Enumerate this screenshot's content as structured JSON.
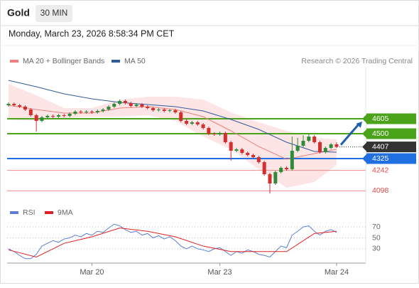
{
  "header": {
    "title": "Gold",
    "interval": "30 MIN",
    "datetime": "Monday, March 23, 2026 8:58:34 PM CET",
    "credit": "Research © 2026 Trading Central"
  },
  "chart_data": {
    "type": "candlestick",
    "categories": [
      null,
      null,
      null,
      null,
      null,
      null,
      null,
      null,
      null,
      null,
      null,
      null,
      null,
      null,
      null,
      "Mar 20",
      null,
      null,
      null,
      null,
      null,
      null,
      null,
      null,
      null,
      null,
      null,
      null,
      null,
      null,
      null,
      null,
      null,
      null,
      null,
      null,
      null,
      null,
      "Mar 23",
      null,
      null,
      null,
      null,
      null,
      null,
      null,
      null,
      null,
      null,
      null,
      null,
      null,
      null,
      null,
      null,
      null,
      null,
      null,
      null,
      "Mar 24"
    ],
    "ylim": [
      4015,
      4965
    ],
    "up_color": "#2e8b3a",
    "down_color": "#d32f2f",
    "ohlc": [
      [
        4700,
        4720,
        4690,
        4710
      ],
      [
        4710,
        4720,
        4690,
        4700
      ],
      [
        4700,
        4710,
        4680,
        4690
      ],
      [
        4690,
        4700,
        4660,
        4670
      ],
      [
        4670,
        4680,
        4620,
        4630
      ],
      [
        4630,
        4640,
        4515,
        4590
      ],
      [
        4590,
        4625,
        4580,
        4615
      ],
      [
        4615,
        4635,
        4605,
        4625
      ],
      [
        4625,
        4635,
        4610,
        4620
      ],
      [
        4620,
        4640,
        4610,
        4630
      ],
      [
        4630,
        4640,
        4615,
        4625
      ],
      [
        4625,
        4650,
        4615,
        4640
      ],
      [
        4640,
        4665,
        4630,
        4655
      ],
      [
        4655,
        4665,
        4640,
        4650
      ],
      [
        4650,
        4665,
        4640,
        4655
      ],
      [
        4655,
        4665,
        4640,
        4650
      ],
      [
        4650,
        4670,
        4640,
        4660
      ],
      [
        4660,
        4680,
        4650,
        4670
      ],
      [
        4670,
        4700,
        4660,
        4690
      ],
      [
        4690,
        4720,
        4680,
        4710
      ],
      [
        4710,
        4740,
        4700,
        4730
      ],
      [
        4730,
        4740,
        4705,
        4715
      ],
      [
        4715,
        4725,
        4685,
        4695
      ],
      [
        4695,
        4715,
        4685,
        4705
      ],
      [
        4705,
        4715,
        4680,
        4690
      ],
      [
        4690,
        4700,
        4670,
        4680
      ],
      [
        4680,
        4690,
        4655,
        4665
      ],
      [
        4665,
        4680,
        4655,
        4670
      ],
      [
        4670,
        4680,
        4650,
        4660
      ],
      [
        4660,
        4675,
        4650,
        4665
      ],
      [
        4665,
        4675,
        4640,
        4650
      ],
      [
        4650,
        4660,
        4580,
        4590
      ],
      [
        4590,
        4600,
        4560,
        4570
      ],
      [
        4570,
        4590,
        4560,
        4580
      ],
      [
        4580,
        4590,
        4555,
        4565
      ],
      [
        4565,
        4575,
        4530,
        4540
      ],
      [
        4540,
        4550,
        4490,
        4500
      ],
      [
        4500,
        4510,
        4485,
        4495
      ],
      [
        4495,
        4515,
        4485,
        4505
      ],
      [
        4505,
        4515,
        4430,
        4440
      ],
      [
        4440,
        4450,
        4310,
        4380
      ],
      [
        4380,
        4400,
        4370,
        4390
      ],
      [
        4390,
        4400,
        4355,
        4365
      ],
      [
        4365,
        4375,
        4340,
        4350
      ],
      [
        4350,
        4360,
        4325,
        4335
      ],
      [
        4335,
        4345,
        4290,
        4300
      ],
      [
        4300,
        4310,
        4205,
        4215
      ],
      [
        4215,
        4225,
        4080,
        4150
      ],
      [
        4150,
        4240,
        4140,
        4230
      ],
      [
        4230,
        4270,
        4220,
        4260
      ],
      [
        4260,
        4270,
        4240,
        4250
      ],
      [
        4250,
        4480,
        4240,
        4380
      ],
      [
        4380,
        4470,
        4370,
        4415
      ],
      [
        4415,
        4490,
        4405,
        4450
      ],
      [
        4450,
        4500,
        4440,
        4480
      ],
      [
        4480,
        4490,
        4430,
        4440
      ],
      [
        4440,
        4450,
        4360,
        4370
      ],
      [
        4370,
        4410,
        4360,
        4400
      ],
      [
        4400,
        4435,
        4390,
        4425
      ],
      [
        4425,
        4440,
        4400,
        4407
      ]
    ],
    "overlays": [
      {
        "name": "MA 20 + Bollinger Bands",
        "color": "#f08080",
        "band_color": "#fbd3d3",
        "x": [
          0,
          5,
          10,
          15,
          20,
          25,
          30,
          35,
          40,
          45,
          50,
          55,
          59
        ],
        "values": [
          4700,
          4670,
          4645,
          4645,
          4680,
          4690,
          4670,
          4620,
          4520,
          4410,
          4320,
          4360,
          4390
        ],
        "upper": [
          4850,
          4770,
          4680,
          4680,
          4740,
          4760,
          4760,
          4740,
          4650,
          4580,
          4520,
          4470,
          4460
        ],
        "lower": [
          4600,
          4590,
          4610,
          4620,
          4620,
          4630,
          4590,
          4480,
          4390,
          4250,
          4120,
          4160,
          4280
        ]
      },
      {
        "name": "MA 50",
        "color": "#2f5b9a",
        "x": [
          0,
          5,
          10,
          15,
          20,
          25,
          30,
          35,
          40,
          45,
          50,
          55,
          59
        ],
        "values": [
          4875,
          4830,
          4780,
          4745,
          4720,
          4705,
          4690,
          4660,
          4600,
          4530,
          4440,
          4375,
          4370
        ]
      }
    ],
    "levels": [
      {
        "value": 4605,
        "color": "#4aa318",
        "style": "box",
        "line": "solid"
      },
      {
        "value": 4500,
        "color": "#4aa318",
        "style": "box",
        "line": "solid"
      },
      {
        "value": 4407,
        "color": "#333333",
        "style": "box",
        "line": "dotted"
      },
      {
        "value": 4325,
        "color": "#1f6fe0",
        "style": "box",
        "line": "solid"
      },
      {
        "value": 4242,
        "color": "#f08a8a",
        "style": "text",
        "line": "solid"
      },
      {
        "value": 4098,
        "color": "#f08a8a",
        "style": "text",
        "line": "solid"
      }
    ],
    "forecast_color": "#1f5fa8",
    "rsi": {
      "ylim": [
        0,
        100
      ],
      "yticks": [
        70,
        50,
        30
      ],
      "series": [
        {
          "name": "RSI",
          "color": "#5b7fd6",
          "values": [
            30,
            25,
            18,
            12,
            12,
            20,
            35,
            40,
            45,
            42,
            48,
            50,
            55,
            52,
            58,
            55,
            62,
            60,
            68,
            75,
            72,
            65,
            60,
            62,
            55,
            58,
            50,
            54,
            48,
            52,
            45,
            35,
            30,
            35,
            30,
            28,
            25,
            30,
            32,
            25,
            18,
            25,
            22,
            28,
            25,
            20,
            18,
            15,
            25,
            35,
            32,
            55,
            62,
            70,
            72,
            62,
            55,
            62,
            65,
            60
          ]
        },
        {
          "name": "9MA",
          "color": "#e02020",
          "x": [
            0,
            5,
            10,
            15,
            20,
            25,
            30,
            35,
            40,
            45,
            50,
            55,
            59
          ],
          "values": [
            28,
            15,
            40,
            52,
            68,
            62,
            52,
            35,
            25,
            25,
            25,
            58,
            62
          ]
        }
      ]
    }
  }
}
